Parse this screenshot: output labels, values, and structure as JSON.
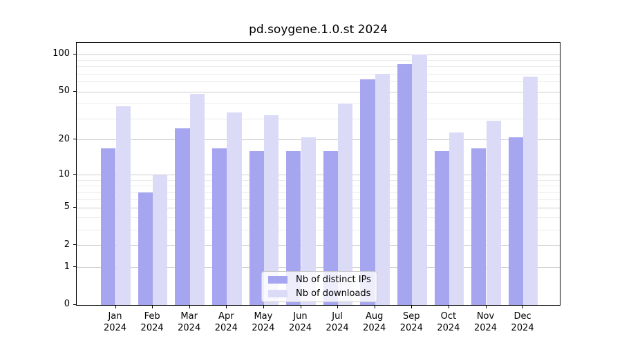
{
  "chart_data": {
    "type": "bar",
    "title": "pd.soygene.1.0.st 2024",
    "categories": [
      {
        "label": "Jan",
        "sublabel": "2024"
      },
      {
        "label": "Feb",
        "sublabel": "2024"
      },
      {
        "label": "Mar",
        "sublabel": "2024"
      },
      {
        "label": "Apr",
        "sublabel": "2024"
      },
      {
        "label": "May",
        "sublabel": "2024"
      },
      {
        "label": "Jun",
        "sublabel": "2024"
      },
      {
        "label": "Jul",
        "sublabel": "2024"
      },
      {
        "label": "Aug",
        "sublabel": "2024"
      },
      {
        "label": "Sep",
        "sublabel": "2024"
      },
      {
        "label": "Oct",
        "sublabel": "2024"
      },
      {
        "label": "Nov",
        "sublabel": "2024"
      },
      {
        "label": "Dec",
        "sublabel": "2024"
      }
    ],
    "series": [
      {
        "name": "Nb of distinct IPs",
        "color": "#a5a5f0",
        "values": [
          17,
          7,
          25,
          17,
          16,
          16,
          16,
          63,
          84,
          16,
          17,
          21
        ]
      },
      {
        "name": "Nb of downloads",
        "color": "#dbdbf7",
        "values": [
          38,
          10,
          48,
          34,
          32,
          21,
          40,
          70,
          100,
          23,
          29,
          67
        ]
      }
    ],
    "yscale": "log1p",
    "ylim": [
      0,
      125
    ],
    "yticks": [
      0,
      1,
      2,
      5,
      10,
      20,
      50,
      100
    ],
    "yticks_minor": [
      3,
      4,
      6,
      7,
      8,
      9,
      30,
      40,
      60,
      70,
      80,
      90
    ],
    "xlabel": "",
    "ylabel": "",
    "grid": "horizontal",
    "legend_position": "lower center",
    "colors": {
      "grid_major": "#cbcbcb",
      "grid_minor": "#eaeaea",
      "axis": "#000000",
      "background": "#ffffff"
    }
  }
}
